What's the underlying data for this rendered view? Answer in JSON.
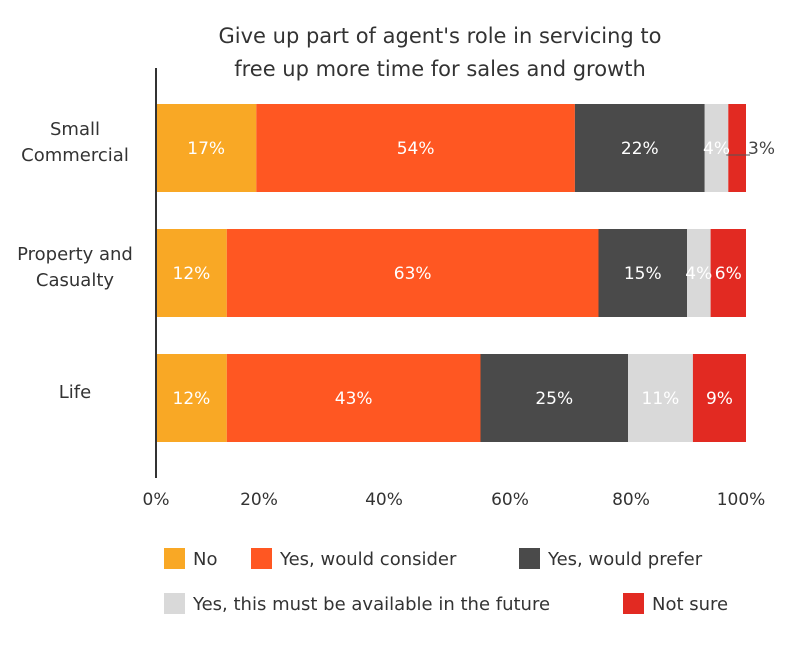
{
  "chart_data": {
    "type": "bar",
    "orientation": "horizontal",
    "stacked": true,
    "title_lines": [
      "Give up part of agent's role in servicing to",
      "free up more time for sales and growth"
    ],
    "categories": [
      [
        "Small",
        "Commercial"
      ],
      [
        "Property and",
        "Casualty"
      ],
      [
        "Life"
      ]
    ],
    "series": [
      {
        "name": "No",
        "color": "#F9A825",
        "label_color": "#ffffff",
        "values": [
          17,
          12,
          12
        ],
        "labels": [
          "17%",
          "12%",
          "12%"
        ]
      },
      {
        "name": "Yes, would consider",
        "color": "#FF5722",
        "label_color": "#ffffff",
        "values": [
          54,
          63,
          43
        ],
        "labels": [
          "54%",
          "63%",
          "43%"
        ]
      },
      {
        "name": "Yes, would prefer",
        "color": "#4A4A4A",
        "label_color": "#ffffff",
        "values": [
          22,
          15,
          25
        ],
        "labels": [
          "22%",
          "15%",
          "25%"
        ]
      },
      {
        "name": "Yes, this must be available in the future",
        "color": "#D9D9D9",
        "label_color": "#ffffff",
        "values": [
          4,
          4,
          11
        ],
        "labels": [
          "4%",
          "4%",
          "11%"
        ]
      },
      {
        "name": "Not sure",
        "color": "#E22A22",
        "label_color": "#ffffff",
        "values": [
          3,
          6,
          9
        ],
        "labels": [
          "3%",
          "6%",
          "9%"
        ]
      }
    ],
    "x_ticks": [
      "0%",
      "20%",
      "40%",
      "60%",
      "80%",
      "100%"
    ],
    "xlim": [
      0,
      100
    ],
    "grid": false,
    "legend_position": "bottom"
  }
}
